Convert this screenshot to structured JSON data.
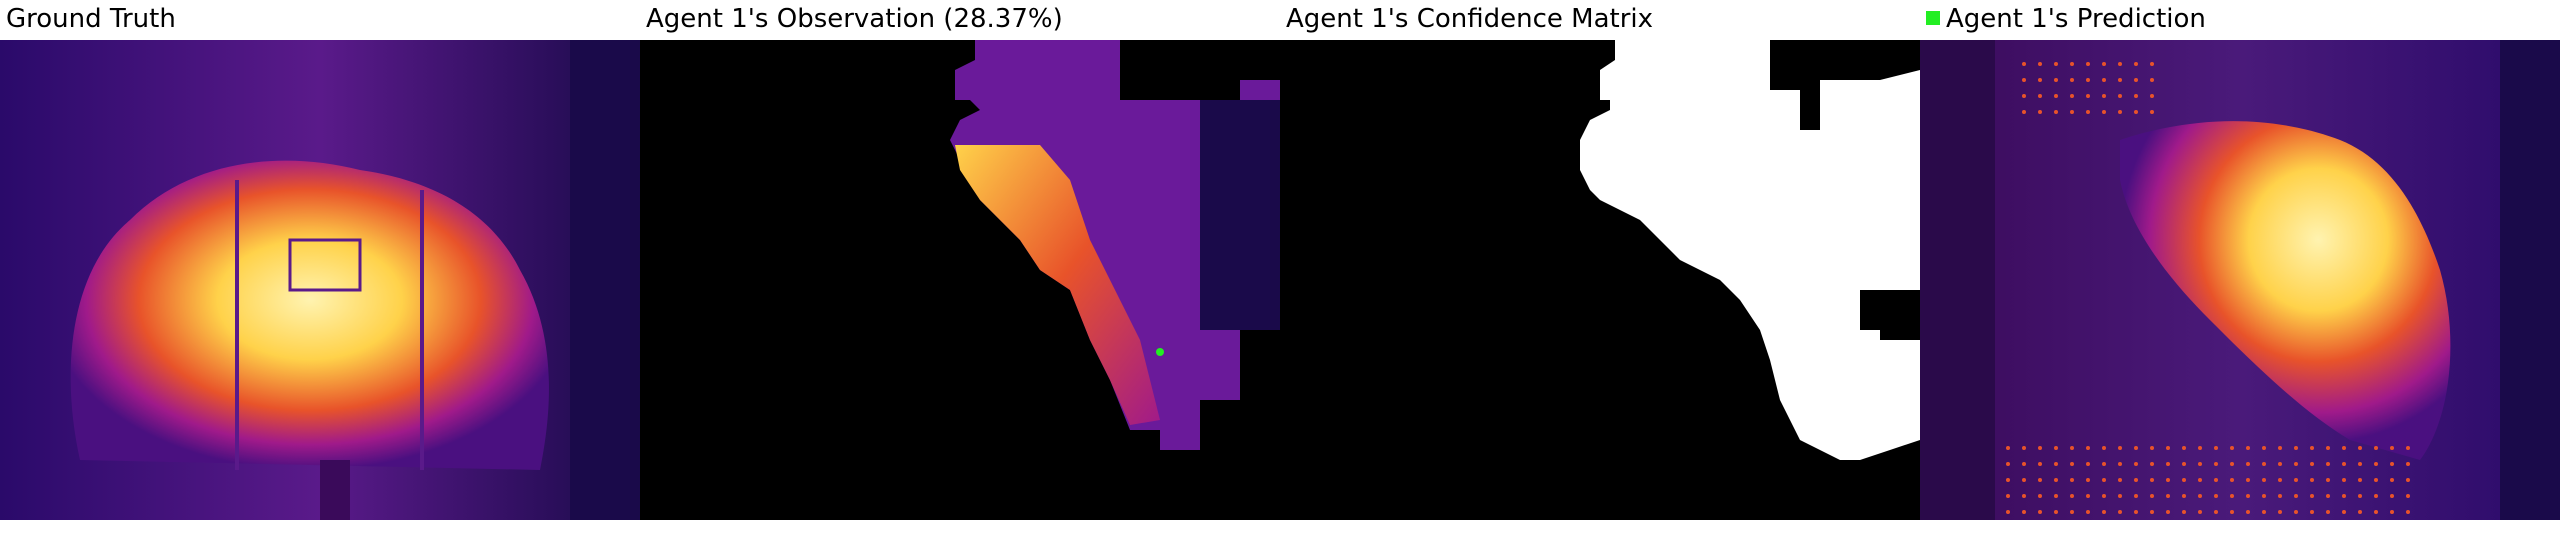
{
  "panels": [
    {
      "title": "Ground Truth"
    },
    {
      "title": "Agent 1's Observation (28.37%)"
    },
    {
      "title": "Agent 1's Confidence Matrix"
    },
    {
      "title": "Agent 1's Prediction"
    }
  ],
  "legend": {
    "prediction_swatch_color": "#22ee22"
  },
  "colors": {
    "background": "#ffffff",
    "mask": "#000000",
    "confidence": "#ffffff",
    "cold": "#1a0a4a",
    "mid": "#7a1aa0",
    "warm": "#e8532a",
    "hot": "#ffd24a",
    "peak": "#fff3b0"
  }
}
